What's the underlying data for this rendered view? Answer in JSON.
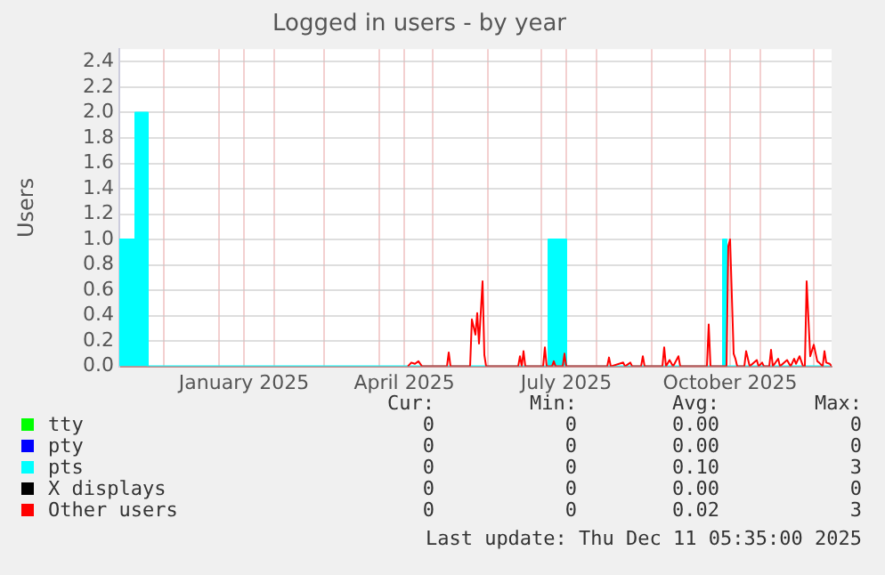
{
  "chart_data": {
    "type": "area",
    "title": "Logged in users - by year",
    "ylabel": "Users",
    "xlim": [
      "2024-11-06",
      "2025-12-11"
    ],
    "xticks": [
      {
        "value": "2024-12-01",
        "label": null
      },
      {
        "value": "2025-01-01",
        "label": null
      },
      {
        "value": "2025-01-15",
        "label": "January 2025"
      },
      {
        "value": "2025-02-01",
        "label": null
      },
      {
        "value": "2025-03-01",
        "label": null
      },
      {
        "value": "2025-04-01",
        "label": null
      },
      {
        "value": "2025-04-15",
        "label": "April 2025"
      },
      {
        "value": "2025-05-01",
        "label": null
      },
      {
        "value": "2025-06-01",
        "label": null
      },
      {
        "value": "2025-07-01",
        "label": null
      },
      {
        "value": "2025-07-15",
        "label": "July 2025"
      },
      {
        "value": "2025-08-01",
        "label": null
      },
      {
        "value": "2025-09-01",
        "label": null
      },
      {
        "value": "2025-10-01",
        "label": null
      },
      {
        "value": "2025-10-15",
        "label": "October 2025"
      },
      {
        "value": "2025-11-01",
        "label": null
      },
      {
        "value": "2025-12-01",
        "label": null
      }
    ],
    "ylim": [
      0,
      2.5
    ],
    "yticks": [
      {
        "value": 0,
        "label": "0.0"
      },
      {
        "value": 0.2,
        "label": "0.2"
      },
      {
        "value": 0.4,
        "label": "0.4"
      },
      {
        "value": 0.6,
        "label": "0.6"
      },
      {
        "value": 0.8,
        "label": "0.8"
      },
      {
        "value": 1,
        "label": "1.0"
      },
      {
        "value": 1.2,
        "label": "1.2"
      },
      {
        "value": 1.4,
        "label": "1.4"
      },
      {
        "value": 1.6,
        "label": "1.6"
      },
      {
        "value": 1.8,
        "label": "1.8"
      },
      {
        "value": 2,
        "label": "2.0"
      },
      {
        "value": 2.2,
        "label": "2.2"
      },
      {
        "value": 2.4,
        "label": "2.4"
      }
    ],
    "grid": true,
    "legend": "bottom",
    "series": [
      {
        "name": "tty",
        "color": "#00ff00",
        "type": "line"
      },
      {
        "name": "pty",
        "color": "#0000ff",
        "type": "line"
      },
      {
        "name": "pts",
        "color": "#00ffff",
        "type": "area",
        "x": [
          "2024-11-06",
          "2024-11-15",
          "2024-11-15",
          "2024-11-22",
          "2024-11-22",
          "2025-07-05",
          "2025-07-05",
          "2025-07-15",
          "2025-07-15",
          "2025-10-11",
          "2025-10-11",
          "2025-10-13",
          "2025-10-13",
          "2025-12-11"
        ],
        "values": [
          1,
          1,
          2,
          2,
          0,
          0,
          1,
          1,
          0,
          0,
          1,
          1,
          0,
          0
        ]
      },
      {
        "name": "X displays",
        "color": "#000000",
        "type": "line"
      },
      {
        "name": "Other users",
        "color": "#ff0000",
        "type": "line",
        "x": [
          "2025-04-17",
          "2025-04-19",
          "2025-04-21",
          "2025-04-23",
          "2025-04-25",
          "2025-05-09",
          "2025-05-10",
          "2025-05-11",
          "2025-05-22",
          "2025-05-23",
          "2025-05-25",
          "2025-05-26",
          "2025-05-27",
          "2025-05-29",
          "2025-05-30",
          "2025-05-31",
          "2025-06-18",
          "2025-06-19",
          "2025-06-20",
          "2025-06-21",
          "2025-06-22",
          "2025-07-02",
          "2025-07-03",
          "2025-07-04",
          "2025-07-07",
          "2025-07-08",
          "2025-07-09",
          "2025-07-13",
          "2025-07-14",
          "2025-07-15",
          "2025-08-07",
          "2025-08-08",
          "2025-08-09",
          "2025-08-16",
          "2025-08-17",
          "2025-08-20",
          "2025-08-21",
          "2025-08-26",
          "2025-08-27",
          "2025-08-28",
          "2025-09-07",
          "2025-09-08",
          "2025-09-09",
          "2025-09-11",
          "2025-09-13",
          "2025-09-16",
          "2025-09-17",
          "2025-10-02",
          "2025-10-03",
          "2025-10-04",
          "2025-10-13",
          "2025-10-14",
          "2025-10-15",
          "2025-10-17",
          "2025-10-18",
          "2025-10-19",
          "2025-10-23",
          "2025-10-24",
          "2025-10-26",
          "2025-10-30",
          "2025-10-31",
          "2025-11-02",
          "2025-11-03",
          "2025-11-06",
          "2025-11-07",
          "2025-11-08",
          "2025-11-11",
          "2025-11-12",
          "2025-11-16",
          "2025-11-18",
          "2025-11-20",
          "2025-11-21",
          "2025-11-23",
          "2025-11-25",
          "2025-11-26",
          "2025-11-27",
          "2025-11-29",
          "2025-12-01",
          "2025-12-03",
          "2025-12-04",
          "2025-12-06",
          "2025-12-07",
          "2025-12-08",
          "2025-12-10",
          "2025-12-11"
        ],
        "values": [
          0,
          0.03,
          0.02,
          0.04,
          0,
          0,
          0.11,
          0,
          0,
          0.37,
          0.25,
          0.42,
          0.18,
          0.67,
          0.09,
          0,
          0,
          0.08,
          0,
          0.12,
          0,
          0,
          0.15,
          0,
          0,
          0.04,
          0,
          0,
          0.1,
          0,
          0,
          0.07,
          0,
          0.03,
          0,
          0.03,
          0,
          0,
          0.08,
          0,
          0,
          0.15,
          0,
          0.05,
          0,
          0.08,
          0,
          0,
          0.33,
          0,
          0,
          0.95,
          1,
          0.1,
          0.06,
          0,
          0,
          0.12,
          0,
          0.05,
          0,
          0.03,
          0,
          0,
          0.13,
          0,
          0.06,
          0,
          0.05,
          0,
          0.06,
          0.02,
          0.08,
          0,
          0,
          0.67,
          0.08,
          0.17,
          0.04,
          0.03,
          0,
          0.12,
          0.03,
          0.02,
          0
        ]
      }
    ],
    "annotations": [
      "Cur:",
      "Min:",
      "Avg:",
      "Max:",
      "0",
      "0",
      "0.00",
      "0",
      "0",
      "0",
      "0.00",
      "0",
      "0",
      "0",
      "0.10",
      "3",
      "0",
      "0",
      "0.00",
      "0",
      "0",
      "0",
      "0.02",
      "3",
      "Last update: Thu Dec 11 05:35:00 2025"
    ]
  }
}
